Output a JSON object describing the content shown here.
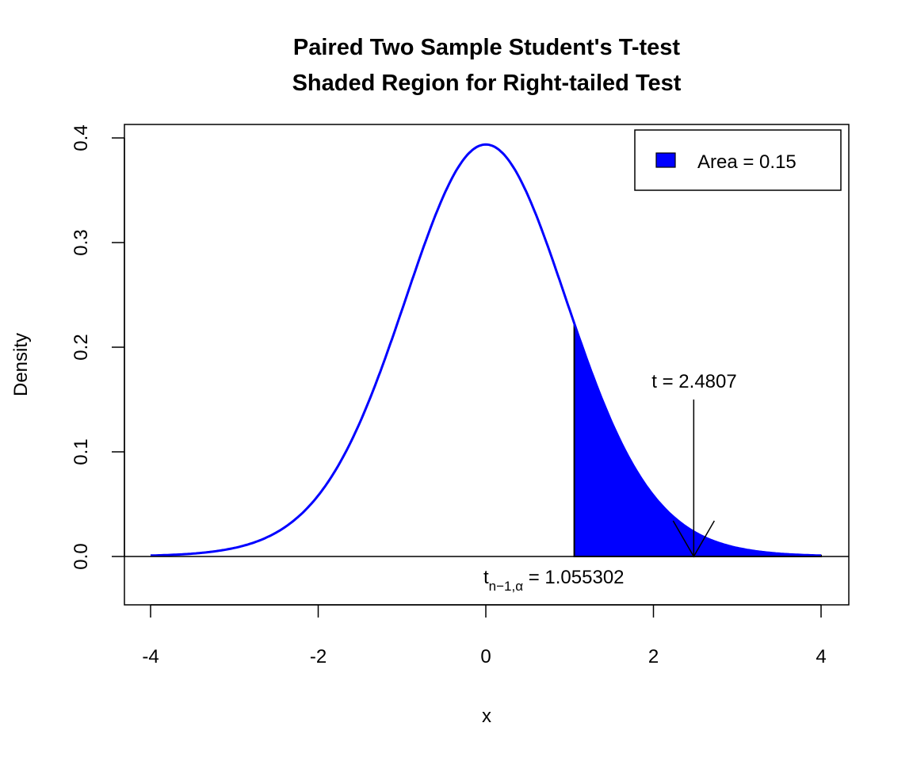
{
  "chart_data": {
    "type": "area",
    "title_line1": "Paired Two Sample Student's T-test",
    "title_line2": "Shaded Region for Right-tailed Test",
    "xlabel": "x",
    "ylabel": "Density",
    "xlim": [
      -4,
      4
    ],
    "ylim": [
      -0.045,
      0.41
    ],
    "x_ticks": [
      -4,
      -2,
      0,
      2,
      4
    ],
    "x_tick_labels": [
      "-4",
      "-2",
      "0",
      "2",
      "4"
    ],
    "y_ticks": [
      0.0,
      0.1,
      0.2,
      0.3,
      0.4
    ],
    "y_tick_labels": [
      "0.0",
      "0.1",
      "0.2",
      "0.3",
      "0.4"
    ],
    "distribution": "Student t density",
    "curve_x": [
      -4.0,
      -3.5,
      -3.0,
      -2.5,
      -2.0,
      -1.5,
      -1.0,
      -0.5,
      0.0,
      0.5,
      1.0,
      1.5,
      2.0,
      2.5,
      3.0,
      3.5,
      4.0
    ],
    "curve_y": [
      0.0013,
      0.0036,
      0.0098,
      0.025,
      0.058,
      0.123,
      0.228,
      0.346,
      0.396,
      0.346,
      0.228,
      0.123,
      0.058,
      0.025,
      0.0098,
      0.0036,
      0.0013
    ],
    "shade_from": 1.055302,
    "shade_to": 4,
    "curve_color": "#0000ff",
    "shade_color": "#0000ff",
    "legend": {
      "label": "Area = 0.15",
      "position": "top-right",
      "color": "#0000ff"
    },
    "critical_value": 1.055302,
    "critical_label_main": "t",
    "critical_label_sub": "n−1,α",
    "critical_label_value": " = 1.055302",
    "test_statistic": 2.4807,
    "test_stat_label": "t = 2.4807",
    "test_stat_arrow_top_y": 0.15,
    "grid": false
  }
}
